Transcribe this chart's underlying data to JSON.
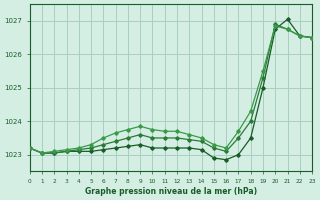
{
  "background_color": "#d4eee4",
  "grid_color": "#a8cfc0",
  "line_color_dark": "#1a5c28",
  "line_color_mid": "#2a7a38",
  "line_color_light": "#3a9a48",
  "xlabel": "Graphe pression niveau de la mer (hPa)",
  "ylim": [
    1022.5,
    1027.5
  ],
  "xlim": [
    0,
    23
  ],
  "yticks": [
    1023,
    1024,
    1025,
    1026,
    1027
  ],
  "xticks": [
    0,
    1,
    2,
    3,
    4,
    5,
    6,
    7,
    8,
    9,
    10,
    11,
    12,
    13,
    14,
    15,
    16,
    17,
    18,
    19,
    20,
    21,
    22,
    23
  ],
  "series1_x": [
    0,
    1,
    2,
    3,
    4,
    5,
    6,
    7,
    8,
    9,
    10,
    11,
    12,
    13,
    14,
    15,
    16,
    17,
    18,
    19,
    20,
    21,
    22,
    23
  ],
  "series1_y": [
    1023.2,
    1023.05,
    1023.05,
    1023.1,
    1023.1,
    1023.1,
    1023.15,
    1023.2,
    1023.25,
    1023.3,
    1023.2,
    1023.2,
    1023.2,
    1023.2,
    1023.15,
    1022.9,
    1022.85,
    1023.0,
    1023.5,
    1025.0,
    1026.75,
    1027.05,
    1026.55,
    1026.5
  ],
  "series2_x": [
    0,
    1,
    2,
    3,
    4,
    5,
    6,
    7,
    8,
    9,
    10,
    11,
    12,
    13,
    14,
    15,
    16,
    17,
    18,
    19,
    20,
    21,
    22,
    23
  ],
  "series2_y": [
    1023.2,
    1023.05,
    1023.05,
    1023.1,
    1023.15,
    1023.2,
    1023.3,
    1023.4,
    1023.5,
    1023.6,
    1023.5,
    1023.5,
    1023.5,
    1023.45,
    1023.4,
    1023.2,
    1023.1,
    1023.5,
    1024.0,
    1025.3,
    1026.9,
    1026.75,
    1026.55,
    1026.5
  ],
  "series3_x": [
    0,
    1,
    2,
    3,
    4,
    5,
    6,
    7,
    8,
    9,
    10,
    11,
    12,
    13,
    14,
    15,
    16,
    17,
    18,
    19,
    20,
    21,
    22,
    23
  ],
  "series3_y": [
    1023.2,
    1023.05,
    1023.1,
    1023.15,
    1023.2,
    1023.3,
    1023.5,
    1023.65,
    1023.75,
    1023.85,
    1023.75,
    1023.7,
    1023.7,
    1023.6,
    1023.5,
    1023.3,
    1023.2,
    1023.7,
    1024.3,
    1025.5,
    1026.85,
    1026.75,
    1026.55,
    1026.5
  ]
}
